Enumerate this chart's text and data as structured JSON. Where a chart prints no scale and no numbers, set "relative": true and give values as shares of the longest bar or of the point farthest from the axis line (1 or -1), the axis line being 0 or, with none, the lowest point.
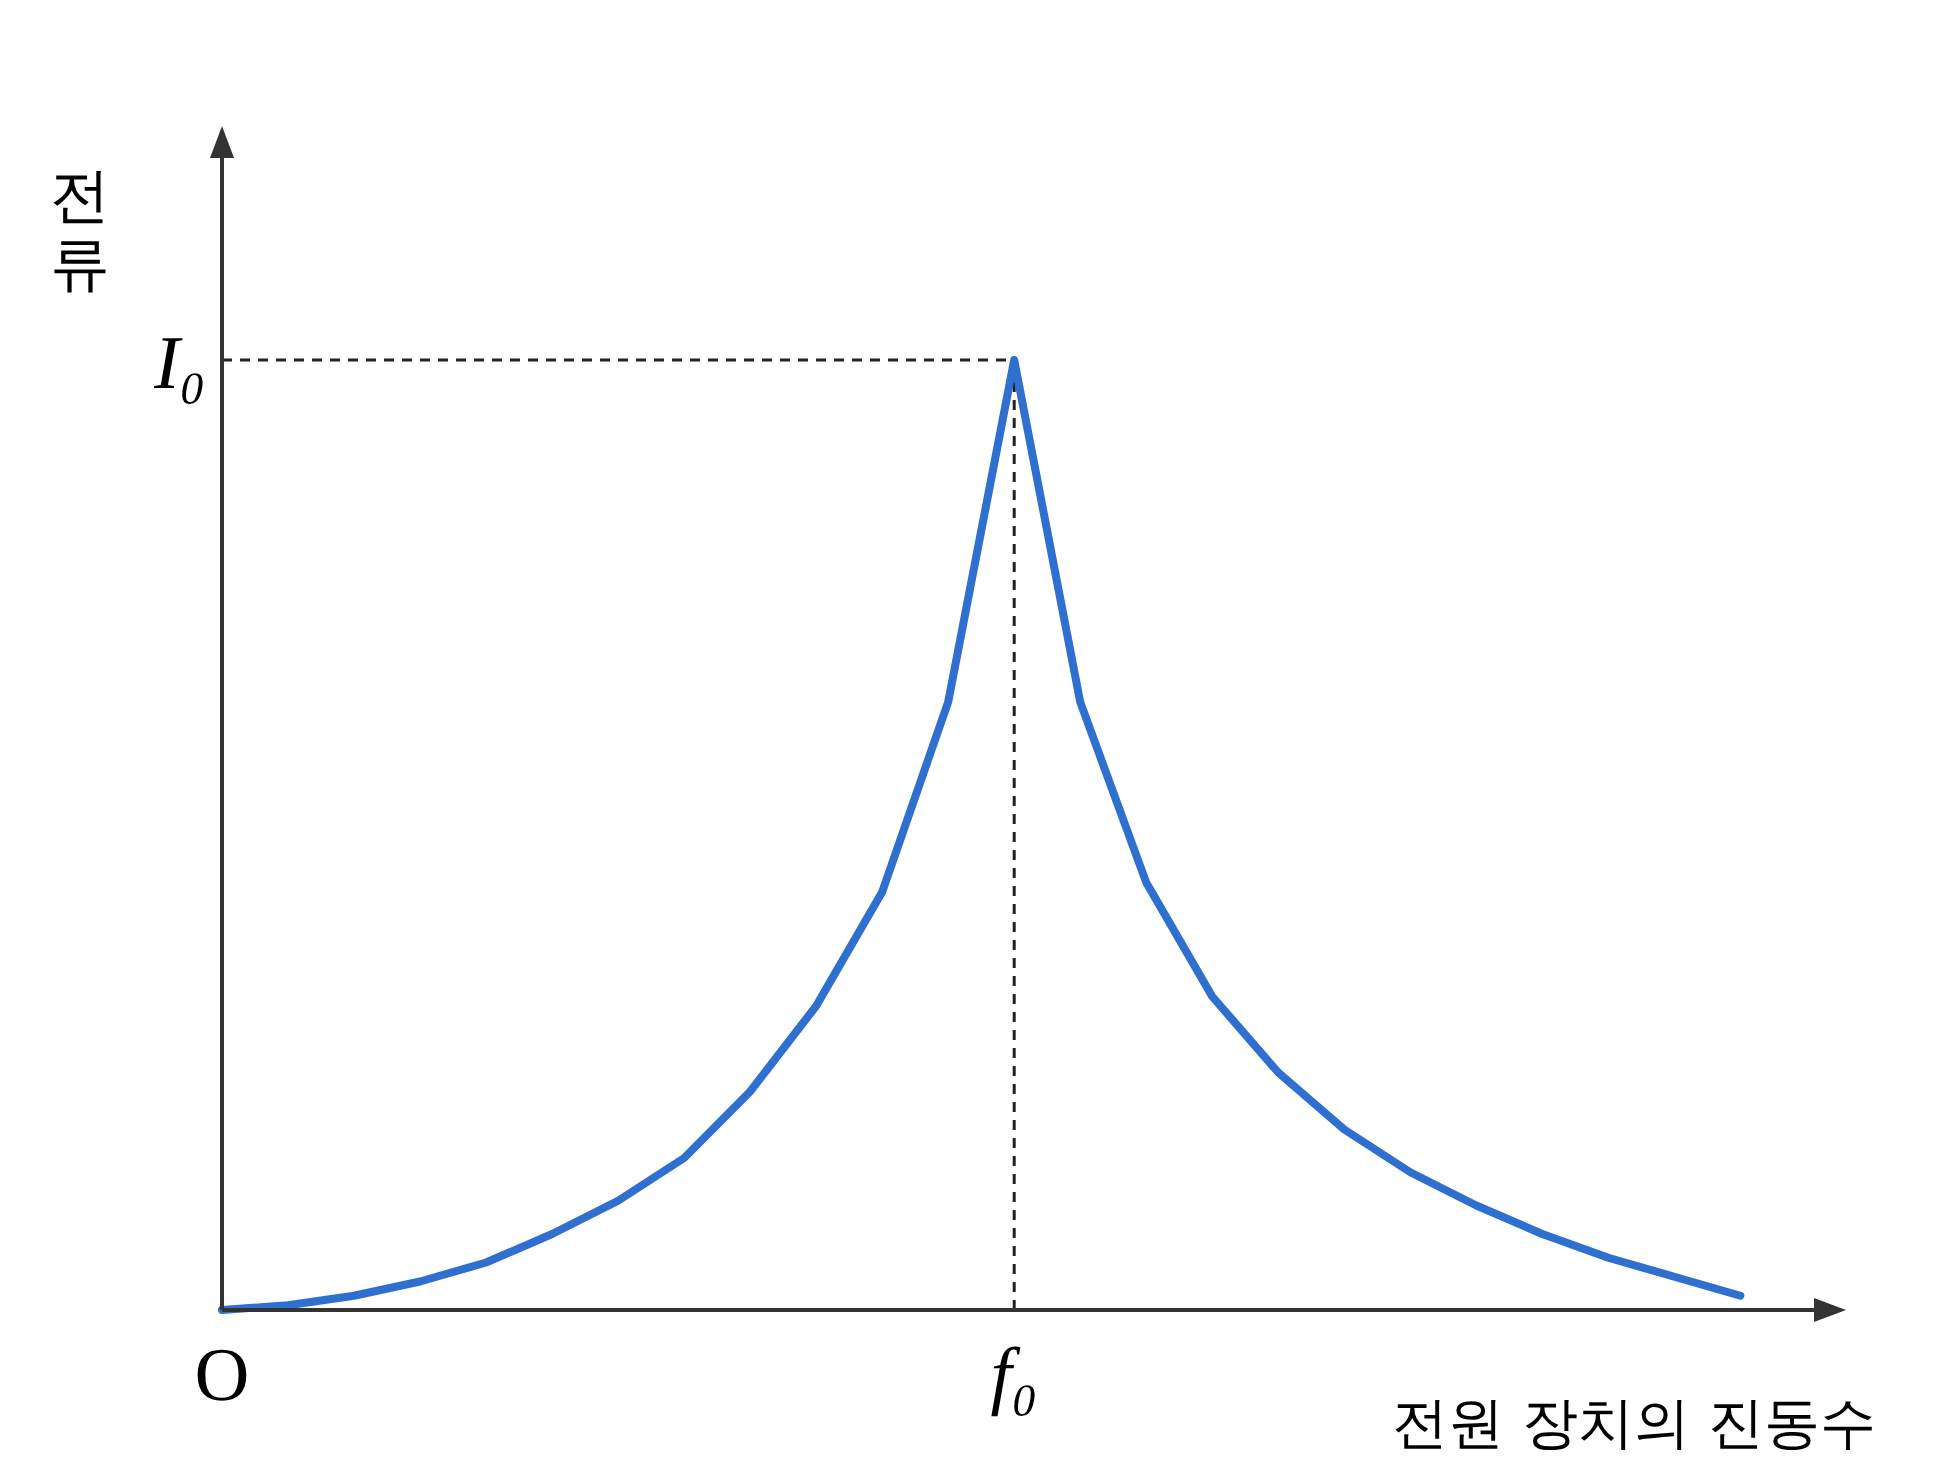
{
  "chart_data": {
    "type": "line",
    "relative": true,
    "xlabel": "전원 장치의 진동수",
    "ylabel": "전류",
    "categories": [
      "O",
      null,
      null,
      null,
      null,
      null,
      null,
      null,
      null,
      null,
      null,
      null,
      "f₀",
      null,
      null,
      null,
      null,
      null,
      null,
      null,
      null,
      null,
      null,
      null
    ],
    "series": [
      {
        "color": "#2f6fd0",
        "values": [
          0,
          0.005,
          0.015,
          0.03,
          0.05,
          0.08,
          0.115,
          0.16,
          0.23,
          0.32,
          0.44,
          0.64,
          1,
          0.64,
          0.45,
          0.33,
          0.25,
          0.19,
          0.145,
          0.11,
          0.08,
          0.055,
          0.035,
          0.015
        ]
      }
    ],
    "ref_lines": [
      {
        "axis": "y",
        "value": 1,
        "label": "I₀",
        "line_style": "dashed"
      },
      {
        "axis": "x",
        "value": "f₀",
        "label": null,
        "line_style": "dashed"
      }
    ],
    "grid": false,
    "legend": false,
    "marker": "none",
    "line_style": "solid"
  }
}
